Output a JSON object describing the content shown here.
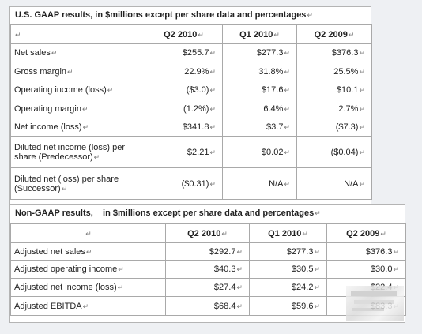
{
  "mark": "↵",
  "us_gaap": {
    "title": "U.S. GAAP results, in $millions except per share data and percentages",
    "headers": [
      "Q2 2010",
      "Q1 2010",
      "Q2 2009"
    ],
    "rows": [
      {
        "label": "Net sales",
        "values": [
          "$255.7",
          "$277.3",
          "$376.3"
        ]
      },
      {
        "label": "Gross margin",
        "values": [
          "22.9%",
          "31.8%",
          "25.5%"
        ]
      },
      {
        "label": "Operating income (loss)",
        "values": [
          "($3.0)",
          "$17.6",
          "$10.1"
        ]
      },
      {
        "label": "Operating margin",
        "values": [
          "(1.2%)",
          "6.4%",
          "2.7%"
        ]
      },
      {
        "label": "Net income (loss)",
        "values": [
          "$341.8",
          "$3.7",
          "($7.3)"
        ]
      },
      {
        "label": "Diluted net income (loss) per share (Predecessor)",
        "values": [
          "$2.21",
          "$0.02",
          "($0.04)"
        ]
      },
      {
        "label": "Diluted net (loss) per share (Successor)",
        "values": [
          "($0.31)",
          "N/A",
          "N/A"
        ]
      }
    ]
  },
  "non_gaap": {
    "title": "Non-GAAP results,    in $millions except per share data and percentages",
    "headers": [
      "Q2 2010",
      "Q1 2010",
      "Q2 2009"
    ],
    "rows": [
      {
        "label": "Adjusted net sales",
        "values": [
          "$292.7",
          "$277.3",
          "$376.3"
        ]
      },
      {
        "label": "Adjusted operating income",
        "values": [
          "$40.3",
          "$30.5",
          "$30.0"
        ]
      },
      {
        "label": "Adjusted net income (loss)",
        "values": [
          "$27.4",
          "$24.2",
          "$22.4"
        ]
      },
      {
        "label": "Adjusted EBITDA",
        "values": [
          "$68.4",
          "$59.6",
          "$83.3"
        ]
      }
    ]
  }
}
